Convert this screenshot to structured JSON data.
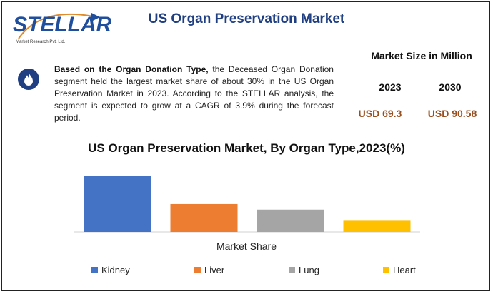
{
  "logo": {
    "word": "STELLAR",
    "subtitle": "Market Research Pvt. Ltd."
  },
  "header": {
    "title": "US Organ Preservation Market"
  },
  "info": {
    "icon": "flame-icon",
    "bold_lead": "Based on the Organ Donation Type,",
    "text": " the Deceased Organ Donation segment held the largest market share of about 30% in the US Organ Preservation Market in 2023. According to the STELLAR analysis, the segment is expected to grow at a CAGR of 3.9% during the forecast period."
  },
  "market_size": {
    "heading": "Market Size in Million",
    "years": [
      "2023",
      "2030"
    ],
    "values": [
      "USD 69.3",
      "USD 90.58"
    ]
  },
  "chart_data": {
    "type": "bar",
    "title": "US Organ Preservation Market, By Organ Type,2023(%)",
    "xlabel": "Market Share",
    "ylabel": "",
    "categories": [
      "Kidney",
      "Liver",
      "Lung",
      "Heart"
    ],
    "values": [
      40,
      20,
      16,
      8
    ],
    "colors": [
      "#4472c4",
      "#ed7d31",
      "#a5a5a5",
      "#ffc000"
    ],
    "ylim": [
      0,
      42
    ],
    "legend_position": "bottom",
    "grid": false
  }
}
